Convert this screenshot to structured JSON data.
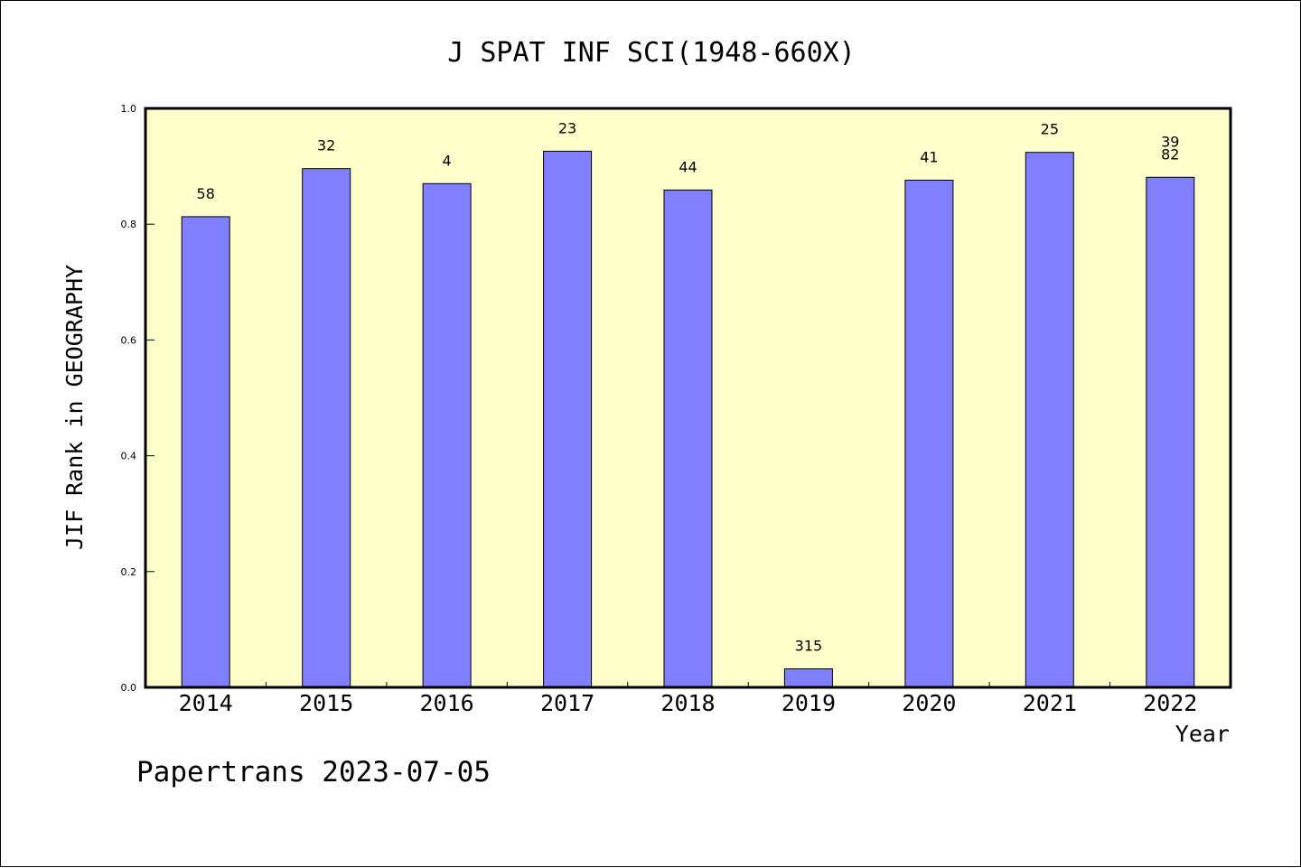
{
  "chart_data": {
    "type": "bar",
    "title": "J SPAT INF SCI(1948-660X)",
    "ylabel": "JIF Rank in GEOGRAPHY",
    "xlabel": "Year",
    "categories": [
      "2014",
      "2015",
      "2016",
      "2017",
      "2018",
      "2019",
      "2020",
      "2021",
      "2022"
    ],
    "values": [
      0.813,
      0.896,
      0.87,
      0.926,
      0.859,
      0.032,
      0.876,
      0.924,
      0.881
    ],
    "data_labels": [
      [
        "58"
      ],
      [
        "32"
      ],
      [
        "4"
      ],
      [
        "23"
      ],
      [
        "44"
      ],
      [
        "315"
      ],
      [
        "41"
      ],
      [
        "25"
      ],
      [
        "39",
        "82"
      ]
    ],
    "ylim": [
      0,
      1.0
    ],
    "yticks": [
      "0.0",
      "0.2",
      "0.4",
      "0.6",
      "0.8",
      "1.0"
    ],
    "grid": false,
    "colors": {
      "plot_background": "#ffffcc",
      "bar_fill": "#8080ff",
      "bar_stroke": "#000000"
    }
  },
  "footer": "Papertrans 2023-07-05"
}
